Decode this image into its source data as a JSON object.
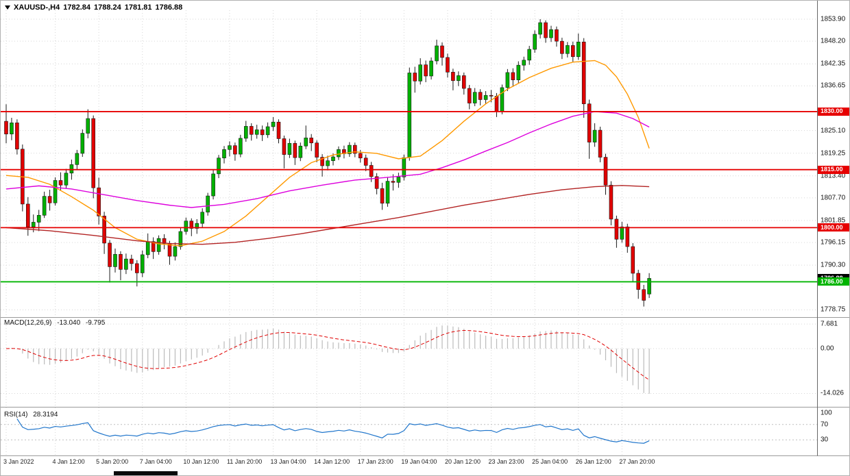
{
  "header": {
    "symbol_timeframe": "XAUUSD-,H4",
    "open": "1782.84",
    "high": "1788.24",
    "low": "1781.81",
    "close": "1786.88"
  },
  "indicators": {
    "macd": {
      "name": "MACD(12,26,9)",
      "main_value": "-13.040",
      "signal_value": "-9.795"
    },
    "rsi": {
      "name": "RSI(14)",
      "value": "28.3194"
    }
  },
  "colors": {
    "bull": "#00B000",
    "bear": "#E00000",
    "candle_outline": "#1a1a1a",
    "sr_red": "#E60000",
    "support_green": "#00B400",
    "ma_fast": "#FF9900",
    "ma_mid": "#DD00DD",
    "ma_slow": "#B22222",
    "macd_hist": "#BBBBBB",
    "macd_signal": "#E00000",
    "rsi_line": "#1F75CB",
    "marker_bg": "#000000",
    "grid": "#D6D6D6",
    "separator": "#9a9a9a",
    "axis_line": "#666666"
  },
  "chart_data": {
    "type": "candlestick",
    "title": "XAUUSD-,H4 1782.84 1788.24 1781.81 1786.88",
    "symbol": "XAUUSD-",
    "timeframe": "H4",
    "last_ohlc": {
      "open": 1782.84,
      "high": 1788.24,
      "low": 1781.81,
      "close": 1786.88
    },
    "price_range": {
      "min": 1777.4,
      "max": 1856.2
    },
    "price_axis_labels": [
      {
        "v": 1853.9,
        "t": "1853.90"
      },
      {
        "v": 1848.2,
        "t": "1848.20"
      },
      {
        "v": 1842.35,
        "t": "1842.35"
      },
      {
        "v": 1836.65,
        "t": "1836.65"
      },
      {
        "v": 1825.1,
        "t": "1825.10"
      },
      {
        "v": 1819.25,
        "t": "1819.25"
      },
      {
        "v": 1813.4,
        "t": "1813.40"
      },
      {
        "v": 1807.7,
        "t": "1807.70"
      },
      {
        "v": 1801.85,
        "t": "1801.85"
      },
      {
        "v": 1796.15,
        "t": "1796.15"
      },
      {
        "v": 1790.3,
        "t": "1790.30"
      },
      {
        "v": 1778.75,
        "t": "1778.75"
      }
    ],
    "x_axis_labels": [
      {
        "t": "3 Jan 2022",
        "i": 0
      },
      {
        "t": "4 Jan 12:00",
        "i": 9
      },
      {
        "t": "5 Jan 20:00",
        "i": 17
      },
      {
        "t": "7 Jan 04:00",
        "i": 25
      },
      {
        "t": "10 Jan 12:00",
        "i": 33
      },
      {
        "t": "11 Jan 20:00",
        "i": 41
      },
      {
        "t": "13 Jan 04:00",
        "i": 49
      },
      {
        "t": "14 Jan 12:00",
        "i": 57
      },
      {
        "t": "17 Jan 23:00",
        "i": 65
      },
      {
        "t": "19 Jan 04:00",
        "i": 73
      },
      {
        "t": "20 Jan 12:00",
        "i": 81
      },
      {
        "t": "23 Jan 23:00",
        "i": 89
      },
      {
        "t": "25 Jan 04:00",
        "i": 97
      },
      {
        "t": "26 Jan 12:00",
        "i": 105
      },
      {
        "t": "27 Jan 20:00",
        "i": 113
      }
    ],
    "candles_ohlc": [
      [
        1827.5,
        1831.9,
        1821.8,
        1824.2
      ],
      [
        1824.2,
        1828.4,
        1822.6,
        1827.1
      ],
      [
        1827.1,
        1828.0,
        1818.9,
        1820.3
      ],
      [
        1820.3,
        1821.5,
        1804.2,
        1806.1
      ],
      [
        1806.1,
        1807.9,
        1797.9,
        1800.2
      ],
      [
        1800.2,
        1803.4,
        1798.8,
        1801.4
      ],
      [
        1801.4,
        1804.6,
        1799.1,
        1803.2
      ],
      [
        1803.2,
        1809.3,
        1802.5,
        1808.1
      ],
      [
        1808.1,
        1809.8,
        1804.4,
        1806.4
      ],
      [
        1806.4,
        1813.0,
        1805.7,
        1812.2
      ],
      [
        1812.2,
        1814.3,
        1809.6,
        1811.0
      ],
      [
        1811.0,
        1815.2,
        1810.2,
        1814.1
      ],
      [
        1814.1,
        1817.6,
        1812.4,
        1816.3
      ],
      [
        1816.3,
        1820.1,
        1814.9,
        1819.2
      ],
      [
        1819.2,
        1825.4,
        1818.3,
        1824.4
      ],
      [
        1824.4,
        1830.6,
        1823.1,
        1828.2
      ],
      [
        1828.2,
        1829.0,
        1807.6,
        1810.3
      ],
      [
        1810.3,
        1812.9,
        1800.8,
        1803.0
      ],
      [
        1803.0,
        1804.1,
        1793.2,
        1796.0
      ],
      [
        1796.0,
        1796.8,
        1785.8,
        1789.9
      ],
      [
        1789.9,
        1794.6,
        1788.4,
        1793.1
      ],
      [
        1793.1,
        1793.9,
        1786.4,
        1789.2
      ],
      [
        1789.2,
        1793.3,
        1788.0,
        1791.9
      ],
      [
        1791.9,
        1793.0,
        1788.9,
        1790.7
      ],
      [
        1790.7,
        1791.6,
        1784.8,
        1788.3
      ],
      [
        1788.3,
        1794.1,
        1787.2,
        1793.0
      ],
      [
        1793.0,
        1798.5,
        1792.1,
        1796.4
      ],
      [
        1796.4,
        1797.5,
        1791.9,
        1793.8
      ],
      [
        1793.8,
        1798.0,
        1793.0,
        1797.2
      ],
      [
        1797.2,
        1798.3,
        1794.4,
        1795.9
      ],
      [
        1795.9,
        1796.6,
        1790.4,
        1792.6
      ],
      [
        1792.6,
        1796.2,
        1791.5,
        1795.1
      ],
      [
        1795.1,
        1800.1,
        1794.3,
        1799.0
      ],
      [
        1799.0,
        1802.6,
        1798.2,
        1801.7
      ],
      [
        1801.7,
        1802.4,
        1797.8,
        1799.8
      ],
      [
        1799.8,
        1802.2,
        1798.4,
        1801.1
      ],
      [
        1801.1,
        1805.0,
        1799.9,
        1804.0
      ],
      [
        1804.0,
        1809.0,
        1803.1,
        1808.2
      ],
      [
        1808.2,
        1814.9,
        1807.3,
        1813.9
      ],
      [
        1813.9,
        1818.8,
        1812.8,
        1818.0
      ],
      [
        1818.0,
        1821.1,
        1816.6,
        1820.2
      ],
      [
        1820.2,
        1822.3,
        1818.4,
        1821.2
      ],
      [
        1821.2,
        1822.0,
        1817.3,
        1819.0
      ],
      [
        1819.0,
        1824.0,
        1818.2,
        1823.1
      ],
      [
        1823.1,
        1827.6,
        1822.2,
        1826.2
      ],
      [
        1826.2,
        1827.0,
        1822.5,
        1824.1
      ],
      [
        1824.1,
        1826.6,
        1823.0,
        1825.3
      ],
      [
        1825.3,
        1826.4,
        1822.4,
        1824.0
      ],
      [
        1824.0,
        1827.2,
        1823.2,
        1826.1
      ],
      [
        1826.1,
        1828.6,
        1825.0,
        1827.3
      ],
      [
        1827.3,
        1828.0,
        1821.8,
        1823.0
      ],
      [
        1823.0,
        1823.8,
        1815.3,
        1818.9
      ],
      [
        1818.9,
        1823.0,
        1818.0,
        1821.8
      ],
      [
        1821.8,
        1822.5,
        1816.2,
        1818.1
      ],
      [
        1818.1,
        1822.0,
        1817.2,
        1821.1
      ],
      [
        1821.1,
        1826.4,
        1820.3,
        1823.2
      ],
      [
        1823.2,
        1824.2,
        1819.8,
        1821.9
      ],
      [
        1821.9,
        1822.6,
        1816.9,
        1818.2
      ],
      [
        1818.2,
        1819.0,
        1813.2,
        1816.0
      ],
      [
        1816.0,
        1818.6,
        1814.8,
        1817.3
      ],
      [
        1817.3,
        1819.2,
        1816.1,
        1818.3
      ],
      [
        1818.3,
        1821.0,
        1817.5,
        1820.2
      ],
      [
        1820.2,
        1821.2,
        1817.9,
        1819.1
      ],
      [
        1819.1,
        1822.1,
        1818.3,
        1821.3
      ],
      [
        1821.3,
        1822.0,
        1818.2,
        1819.2
      ],
      [
        1819.2,
        1820.1,
        1816.8,
        1818.0
      ],
      [
        1818.0,
        1818.9,
        1814.6,
        1816.1
      ],
      [
        1816.1,
        1817.0,
        1811.8,
        1813.2
      ],
      [
        1813.2,
        1814.1,
        1808.6,
        1810.1
      ],
      [
        1810.1,
        1811.6,
        1804.6,
        1806.3
      ],
      [
        1806.3,
        1813.0,
        1805.4,
        1812.0
      ],
      [
        1812.0,
        1813.8,
        1809.6,
        1811.7
      ],
      [
        1811.7,
        1814.2,
        1810.3,
        1813.1
      ],
      [
        1813.1,
        1818.9,
        1812.2,
        1818.1
      ],
      [
        1818.1,
        1841.4,
        1817.3,
        1840.0
      ],
      [
        1840.0,
        1841.6,
        1834.9,
        1837.9
      ],
      [
        1837.9,
        1843.8,
        1837.0,
        1842.1
      ],
      [
        1842.1,
        1843.2,
        1837.6,
        1839.2
      ],
      [
        1839.2,
        1844.0,
        1838.3,
        1843.1
      ],
      [
        1843.1,
        1848.6,
        1842.2,
        1847.0
      ],
      [
        1847.0,
        1847.9,
        1841.9,
        1844.0
      ],
      [
        1844.0,
        1845.0,
        1838.8,
        1840.2
      ],
      [
        1840.2,
        1841.1,
        1835.5,
        1838.0
      ],
      [
        1838.0,
        1840.4,
        1836.6,
        1839.3
      ],
      [
        1839.3,
        1840.1,
        1834.4,
        1836.0
      ],
      [
        1836.0,
        1836.9,
        1830.6,
        1832.2
      ],
      [
        1832.2,
        1836.1,
        1831.4,
        1835.0
      ],
      [
        1835.0,
        1835.8,
        1831.6,
        1833.1
      ],
      [
        1833.1,
        1835.3,
        1832.0,
        1834.2
      ],
      [
        1834.2,
        1835.6,
        1832.4,
        1834.0
      ],
      [
        1834.0,
        1834.8,
        1828.6,
        1830.1
      ],
      [
        1830.1,
        1837.0,
        1829.3,
        1836.2
      ],
      [
        1836.2,
        1841.0,
        1835.3,
        1840.1
      ],
      [
        1840.1,
        1841.2,
        1836.4,
        1838.2
      ],
      [
        1838.2,
        1843.0,
        1837.3,
        1842.0
      ],
      [
        1842.0,
        1844.2,
        1840.6,
        1843.3
      ],
      [
        1843.3,
        1847.0,
        1842.1,
        1846.1
      ],
      [
        1846.1,
        1851.0,
        1845.2,
        1850.0
      ],
      [
        1850.0,
        1853.9,
        1848.9,
        1853.0
      ],
      [
        1853.0,
        1853.6,
        1847.8,
        1849.1
      ],
      [
        1849.1,
        1852.2,
        1848.0,
        1851.2
      ],
      [
        1851.2,
        1852.0,
        1846.8,
        1848.2
      ],
      [
        1848.2,
        1849.1,
        1843.6,
        1845.0
      ],
      [
        1845.0,
        1848.0,
        1844.0,
        1847.1
      ],
      [
        1847.1,
        1848.1,
        1842.8,
        1844.2
      ],
      [
        1844.2,
        1850.2,
        1843.4,
        1848.0
      ],
      [
        1848.0,
        1849.0,
        1828.4,
        1832.0
      ],
      [
        1832.0,
        1833.1,
        1817.8,
        1822.1
      ],
      [
        1822.1,
        1827.0,
        1820.9,
        1825.2
      ],
      [
        1825.2,
        1826.1,
        1816.9,
        1818.2
      ],
      [
        1818.2,
        1819.1,
        1808.5,
        1811.0
      ],
      [
        1811.0,
        1812.0,
        1800.6,
        1802.2
      ],
      [
        1802.2,
        1803.1,
        1794.8,
        1797.0
      ],
      [
        1797.0,
        1801.5,
        1796.1,
        1800.2
      ],
      [
        1800.2,
        1801.0,
        1793.5,
        1795.1
      ],
      [
        1795.1,
        1796.0,
        1786.1,
        1788.2
      ],
      [
        1788.2,
        1789.1,
        1781.6,
        1784.0
      ],
      [
        1784.0,
        1785.2,
        1779.6,
        1781.2
      ],
      [
        1782.84,
        1788.24,
        1781.81,
        1786.88
      ]
    ],
    "hlines": [
      {
        "price": 1830.0,
        "color_key": "sr_red"
      },
      {
        "price": 1815.0,
        "color_key": "sr_red"
      },
      {
        "price": 1800.0,
        "color_key": "sr_red"
      },
      {
        "price": 1786.0,
        "color_key": "support_green"
      }
    ],
    "scale_badges": [
      {
        "t": "1830.00",
        "price": 1830.0,
        "bg": "#E60000",
        "fg": "#FFFFFF"
      },
      {
        "t": "1815.00",
        "price": 1815.0,
        "bg": "#E60000",
        "fg": "#FFFFFF"
      },
      {
        "t": "1800.00",
        "price": 1800.0,
        "bg": "#E60000",
        "fg": "#FFFFFF"
      },
      {
        "t": "1786.88",
        "price": 1786.88,
        "bg": "#000000",
        "fg": "#FFFFFF"
      },
      {
        "t": "1786.00",
        "price": 1786.0,
        "bg": "#00B400",
        "fg": "#FFFFFF"
      }
    ],
    "ma_lines": [
      {
        "name": "ma-orange-fast",
        "color_key": "ma_fast",
        "points": [
          [
            0,
            1813.5
          ],
          [
            4,
            1813.0
          ],
          [
            8,
            1811.2
          ],
          [
            12,
            1808.0
          ],
          [
            16,
            1804.5
          ],
          [
            20,
            1800.0
          ],
          [
            24,
            1797.0
          ],
          [
            28,
            1795.8
          ],
          [
            32,
            1795.3
          ],
          [
            36,
            1796.5
          ],
          [
            40,
            1799.0
          ],
          [
            44,
            1803.0
          ],
          [
            48,
            1808.0
          ],
          [
            52,
            1813.0
          ],
          [
            56,
            1816.8
          ],
          [
            60,
            1818.8
          ],
          [
            64,
            1819.6
          ],
          [
            68,
            1819.2
          ],
          [
            72,
            1817.8
          ],
          [
            76,
            1818.5
          ],
          [
            80,
            1822.5
          ],
          [
            84,
            1827.5
          ],
          [
            88,
            1832.0
          ],
          [
            92,
            1835.8
          ],
          [
            96,
            1838.8
          ],
          [
            100,
            1841.2
          ],
          [
            104,
            1842.8
          ],
          [
            108,
            1843.2
          ],
          [
            110,
            1842.0
          ],
          [
            112,
            1839.0
          ],
          [
            114,
            1834.5
          ],
          [
            116,
            1828.5
          ],
          [
            118,
            1820.5
          ]
        ]
      },
      {
        "name": "ma-magenta-mid",
        "color_key": "ma_mid",
        "points": [
          [
            0,
            1810.0
          ],
          [
            6,
            1810.8
          ],
          [
            12,
            1810.0
          ],
          [
            18,
            1808.5
          ],
          [
            24,
            1807.0
          ],
          [
            30,
            1805.8
          ],
          [
            34,
            1805.2
          ],
          [
            40,
            1806.0
          ],
          [
            46,
            1807.5
          ],
          [
            52,
            1809.5
          ],
          [
            58,
            1811.0
          ],
          [
            64,
            1812.3
          ],
          [
            70,
            1813.0
          ],
          [
            76,
            1813.8
          ],
          [
            80,
            1815.5
          ],
          [
            84,
            1817.5
          ],
          [
            88,
            1819.8
          ],
          [
            92,
            1822.0
          ],
          [
            96,
            1824.5
          ],
          [
            100,
            1826.8
          ],
          [
            104,
            1828.8
          ],
          [
            108,
            1830.0
          ],
          [
            112,
            1829.6
          ],
          [
            115,
            1828.2
          ],
          [
            118,
            1826.0
          ]
        ]
      },
      {
        "name": "ma-darkred-slow",
        "color_key": "ma_slow",
        "points": [
          [
            0,
            1800.0
          ],
          [
            8,
            1799.2
          ],
          [
            16,
            1798.0
          ],
          [
            24,
            1796.6
          ],
          [
            30,
            1795.9
          ],
          [
            36,
            1795.7
          ],
          [
            42,
            1796.2
          ],
          [
            48,
            1797.2
          ],
          [
            54,
            1798.4
          ],
          [
            60,
            1799.8
          ],
          [
            66,
            1801.2
          ],
          [
            72,
            1802.6
          ],
          [
            78,
            1804.2
          ],
          [
            84,
            1805.8
          ],
          [
            90,
            1807.2
          ],
          [
            96,
            1808.6
          ],
          [
            102,
            1809.8
          ],
          [
            108,
            1810.6
          ],
          [
            113,
            1810.9
          ],
          [
            118,
            1810.6
          ]
        ]
      }
    ],
    "macd": {
      "fast": 12,
      "slow": 26,
      "signal": 9,
      "axis_labels": [
        {
          "v": 7.681,
          "t": "7.681"
        },
        {
          "v": 0,
          "t": "0.00"
        },
        {
          "v": -14.026,
          "t": "-14.026"
        }
      ],
      "range": {
        "min": -16.5,
        "max": 9.0
      }
    },
    "rsi": {
      "period": 14,
      "levels": [
        70,
        30
      ],
      "axis_labels": [
        {
          "v": 100,
          "t": "100"
        },
        {
          "v": 70,
          "t": "70"
        },
        {
          "v": 30,
          "t": "30"
        }
      ],
      "range": {
        "min": -5,
        "max": 105
      }
    }
  }
}
